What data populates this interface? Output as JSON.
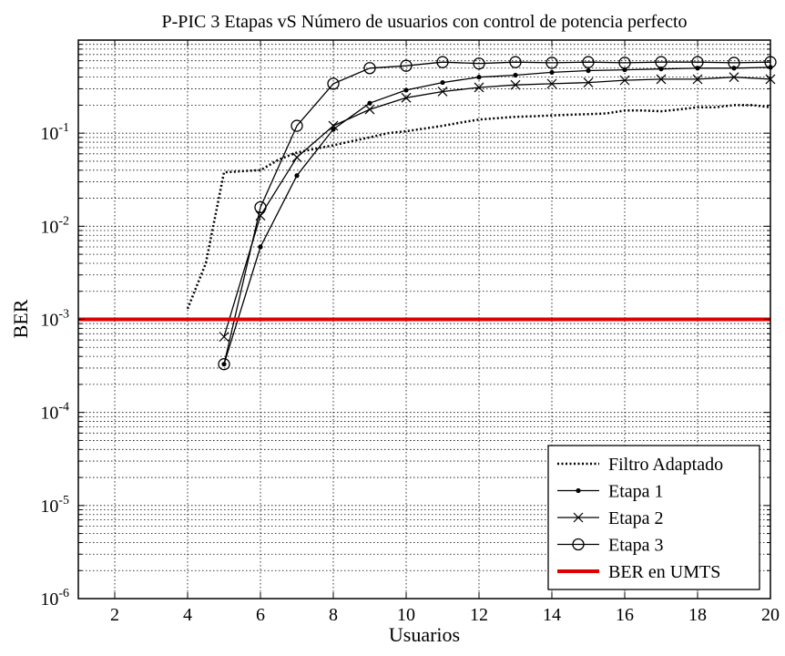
{
  "chart_data": {
    "type": "line",
    "title": "P-PIC 3 Etapas vS Número de usuarios con control de potencia perfecto",
    "xlabel": "Usuarios",
    "ylabel": "BER",
    "xlim": [
      1,
      20
    ],
    "ylim": [
      1e-06,
      1
    ],
    "yscale": "log",
    "grid": true,
    "legend_position": "bottom-right",
    "x_ticks": [
      "2",
      "4",
      "6",
      "8",
      "10",
      "12",
      "14",
      "16",
      "18",
      "20"
    ],
    "y_ticks": [
      {
        "base": "10",
        "exp": "-6"
      },
      {
        "base": "10",
        "exp": "-5"
      },
      {
        "base": "10",
        "exp": "-4"
      },
      {
        "base": "10",
        "exp": "-3"
      },
      {
        "base": "10",
        "exp": "-2"
      },
      {
        "base": "10",
        "exp": "-1"
      }
    ],
    "series": [
      {
        "name": "Filtro Adaptado",
        "color": "#000000",
        "style": "dotted",
        "marker": "none",
        "x": [
          4,
          4.5,
          5,
          5.5,
          6,
          6.5,
          7,
          7.5,
          8,
          8.5,
          9,
          9.5,
          10,
          10.5,
          11,
          11.5,
          12,
          12.5,
          13,
          13.5,
          14,
          14.5,
          15,
          15.5,
          16,
          16.5,
          17,
          17.5,
          18,
          18.5,
          19,
          19.5,
          20
        ],
        "y": [
          0.0013,
          0.004,
          0.038,
          0.039,
          0.04,
          0.052,
          0.062,
          0.068,
          0.074,
          0.082,
          0.09,
          0.1,
          0.105,
          0.112,
          0.12,
          0.13,
          0.14,
          0.145,
          0.15,
          0.152,
          0.155,
          0.158,
          0.16,
          0.163,
          0.175,
          0.175,
          0.172,
          0.18,
          0.19,
          0.19,
          0.2,
          0.2,
          0.19
        ]
      },
      {
        "name": "Etapa 1",
        "color": "#000000",
        "style": "solid",
        "marker": "dot",
        "x": [
          5,
          6,
          7,
          8,
          9,
          10,
          11,
          12,
          13,
          14,
          15,
          16,
          17,
          18,
          19,
          20
        ],
        "y": [
          0.00033,
          0.006,
          0.035,
          0.11,
          0.21,
          0.29,
          0.35,
          0.4,
          0.42,
          0.45,
          0.47,
          0.48,
          0.49,
          0.5,
          0.5,
          0.51
        ]
      },
      {
        "name": "Etapa 2",
        "color": "#000000",
        "style": "solid",
        "marker": "x",
        "x": [
          5,
          6,
          7,
          8,
          9,
          10,
          11,
          12,
          13,
          14,
          15,
          16,
          17,
          18,
          19,
          20
        ],
        "y": [
          0.00065,
          0.013,
          0.055,
          0.12,
          0.18,
          0.24,
          0.28,
          0.31,
          0.33,
          0.34,
          0.35,
          0.37,
          0.38,
          0.38,
          0.4,
          0.38
        ]
      },
      {
        "name": "Etapa 3",
        "color": "#000000",
        "style": "solid",
        "marker": "circle",
        "x": [
          5,
          6,
          7,
          8,
          9,
          10,
          11,
          12,
          13,
          14,
          15,
          16,
          17,
          18,
          19,
          20
        ],
        "y": [
          0.00033,
          0.016,
          0.12,
          0.34,
          0.5,
          0.53,
          0.58,
          0.56,
          0.58,
          0.57,
          0.58,
          0.57,
          0.58,
          0.58,
          0.57,
          0.58
        ]
      },
      {
        "name": "BER en UMTS",
        "color": "#e00000",
        "style": "solid-thick",
        "marker": "none",
        "x": [
          1,
          20
        ],
        "y": [
          0.001,
          0.001
        ]
      }
    ]
  }
}
